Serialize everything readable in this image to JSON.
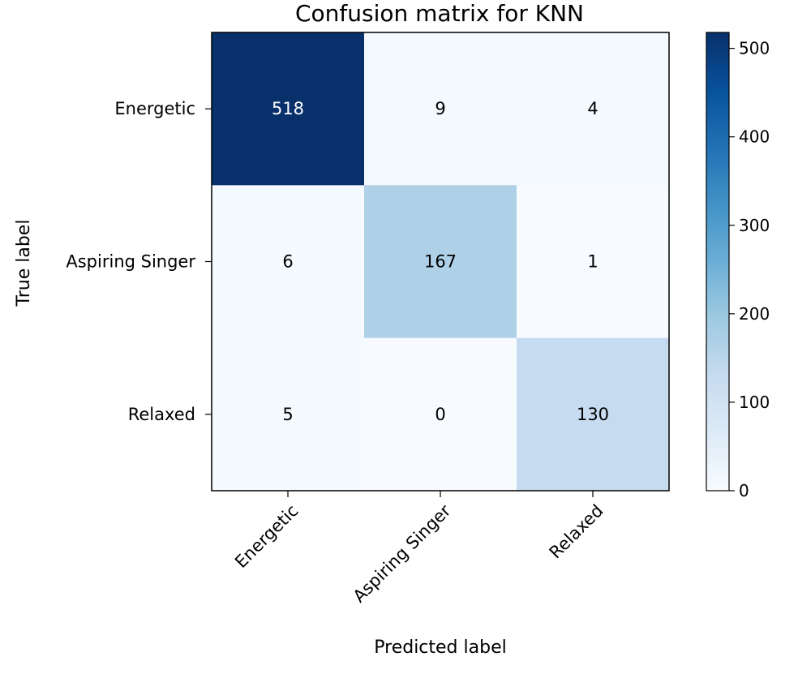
{
  "chart_data": {
    "type": "heatmap",
    "title": "Confusion matrix for KNN",
    "xlabel": "Predicted label",
    "ylabel": "True label",
    "x_categories": [
      "Energetic",
      "Aspiring Singer",
      "Relaxed"
    ],
    "y_categories": [
      "Energetic",
      "Aspiring Singer",
      "Relaxed"
    ],
    "matrix": [
      [
        518,
        9,
        4
      ],
      [
        6,
        167,
        1
      ],
      [
        5,
        0,
        130
      ]
    ],
    "colormap": "Blues",
    "color_range": [
      0,
      518
    ],
    "colorbar_ticks": [
      0,
      100,
      200,
      300,
      400,
      500
    ],
    "grid": false
  }
}
